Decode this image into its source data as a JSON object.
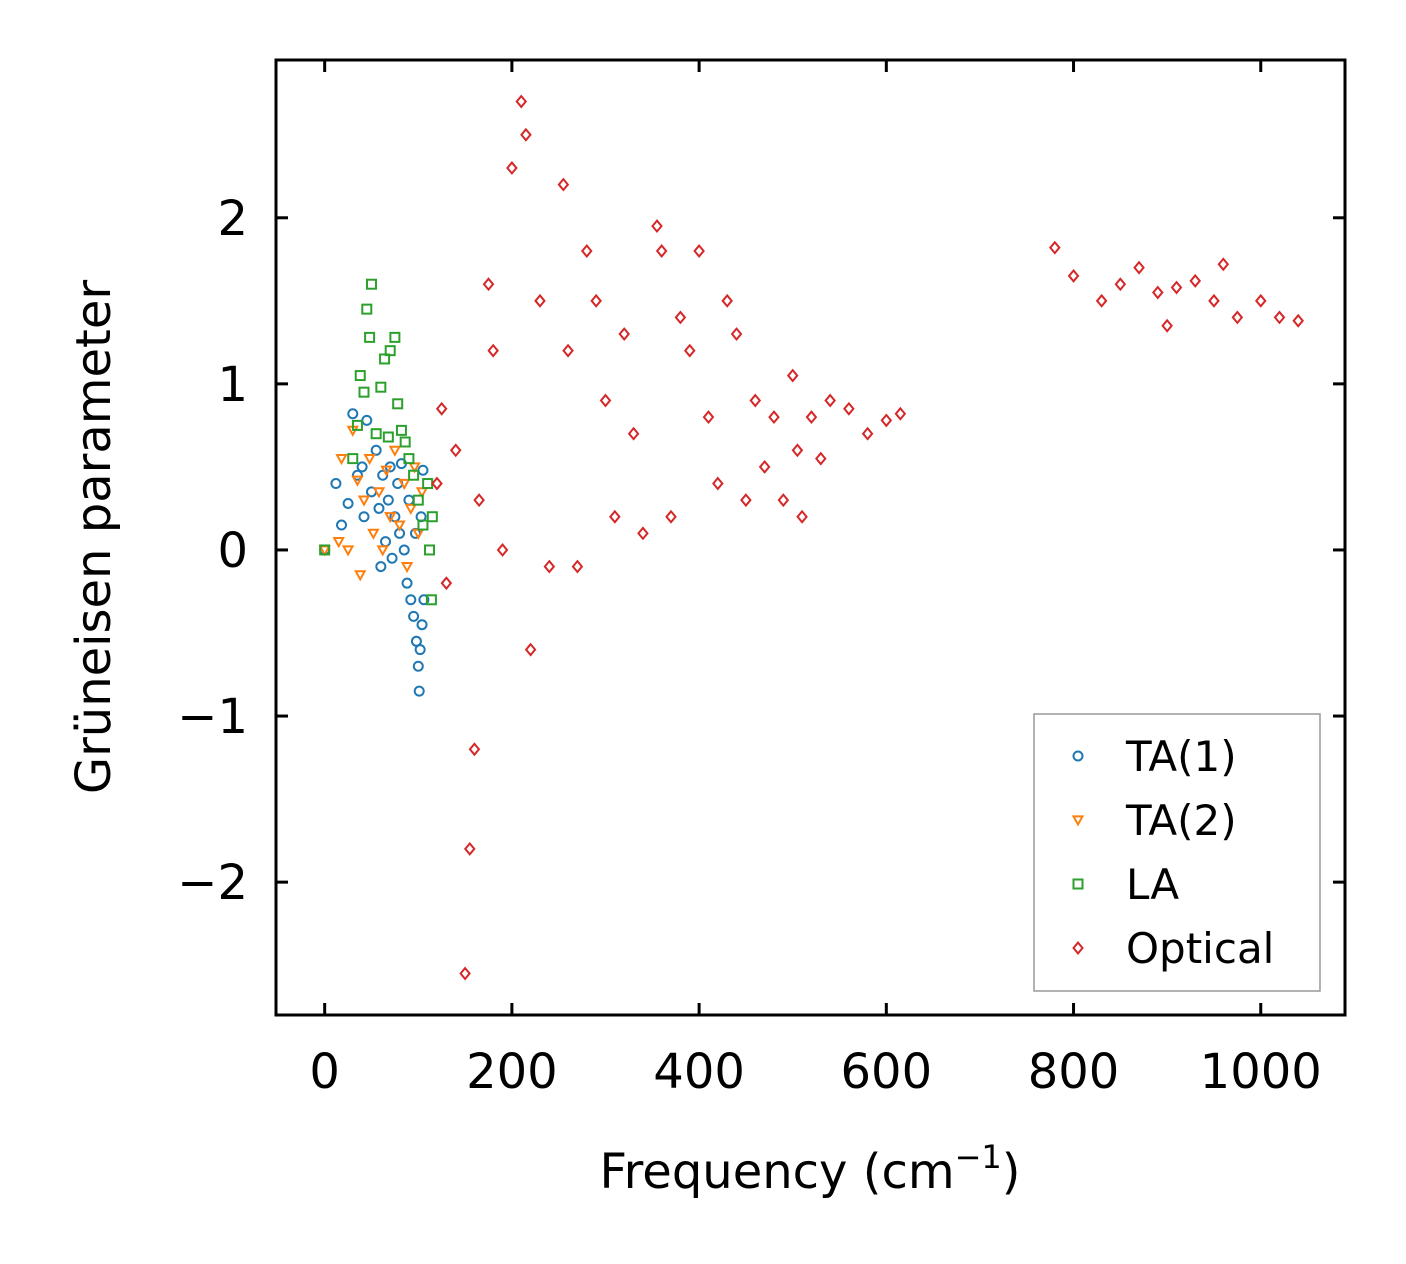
{
  "chart_data": {
    "type": "scatter",
    "title": "",
    "xlabel": "Frequency (cm",
    "xlabel_sup": "−1",
    "xlabel_close": ")",
    "ylabel": "Grüneisen parameter",
    "xlim": [
      -52,
      1090
    ],
    "ylim": [
      -2.8,
      2.95
    ],
    "xticks": [
      0,
      200,
      400,
      600,
      800,
      1000
    ],
    "xtick_labels": [
      "0",
      "200",
      "400",
      "600",
      "800",
      "1000"
    ],
    "yticks": [
      -2,
      -1,
      0,
      1,
      2
    ],
    "ytick_labels": [
      "−2",
      "−1",
      "0",
      "1",
      "2"
    ],
    "grid": false,
    "legend_position": "bottom-right",
    "series": [
      {
        "name": "TA(1)",
        "marker": "circle",
        "color": "#1f77b4",
        "points": [
          [
            0,
            0
          ],
          [
            12,
            0.4
          ],
          [
            18,
            0.15
          ],
          [
            25,
            0.28
          ],
          [
            30,
            0.82
          ],
          [
            35,
            0.45
          ],
          [
            40,
            0.5
          ],
          [
            42,
            0.2
          ],
          [
            45,
            0.78
          ],
          [
            50,
            0.35
          ],
          [
            55,
            0.6
          ],
          [
            58,
            0.25
          ],
          [
            60,
            -0.1
          ],
          [
            62,
            0.45
          ],
          [
            65,
            0.05
          ],
          [
            68,
            0.3
          ],
          [
            70,
            0.5
          ],
          [
            72,
            -0.05
          ],
          [
            75,
            0.2
          ],
          [
            78,
            0.4
          ],
          [
            80,
            0.1
          ],
          [
            82,
            0.52
          ],
          [
            85,
            0.0
          ],
          [
            88,
            -0.2
          ],
          [
            90,
            0.3
          ],
          [
            92,
            -0.3
          ],
          [
            95,
            -0.4
          ],
          [
            97,
            0.1
          ],
          [
            98,
            -0.55
          ],
          [
            100,
            -0.7
          ],
          [
            101,
            -0.85
          ],
          [
            102,
            -0.6
          ],
          [
            103,
            0.2
          ],
          [
            104,
            -0.45
          ],
          [
            105,
            0.48
          ],
          [
            106,
            -0.3
          ]
        ]
      },
      {
        "name": "TA(2)",
        "marker": "triangle-down",
        "color": "#ff7f0e",
        "points": [
          [
            0,
            0
          ],
          [
            15,
            0.05
          ],
          [
            18,
            0.55
          ],
          [
            25,
            0.0
          ],
          [
            30,
            0.72
          ],
          [
            35,
            0.42
          ],
          [
            38,
            -0.15
          ],
          [
            42,
            0.3
          ],
          [
            48,
            0.55
          ],
          [
            52,
            0.1
          ],
          [
            58,
            0.35
          ],
          [
            62,
            0.0
          ],
          [
            66,
            0.48
          ],
          [
            70,
            0.2
          ],
          [
            75,
            0.6
          ],
          [
            80,
            0.15
          ],
          [
            85,
            0.4
          ],
          [
            88,
            -0.1
          ],
          [
            92,
            0.25
          ],
          [
            96,
            0.5
          ],
          [
            100,
            0.1
          ],
          [
            104,
            0.35
          ]
        ]
      },
      {
        "name": "LA",
        "marker": "square",
        "color": "#2ca02c",
        "points": [
          [
            0,
            0
          ],
          [
            30,
            0.55
          ],
          [
            35,
            0.75
          ],
          [
            38,
            1.05
          ],
          [
            42,
            0.95
          ],
          [
            45,
            1.45
          ],
          [
            48,
            1.28
          ],
          [
            50,
            1.6
          ],
          [
            55,
            0.7
          ],
          [
            60,
            0.98
          ],
          [
            64,
            1.15
          ],
          [
            68,
            0.68
          ],
          [
            70,
            1.2
          ],
          [
            75,
            1.28
          ],
          [
            78,
            0.88
          ],
          [
            82,
            0.72
          ],
          [
            86,
            0.65
          ],
          [
            90,
            0.55
          ],
          [
            95,
            0.45
          ],
          [
            100,
            0.3
          ],
          [
            105,
            0.15
          ],
          [
            110,
            0.4
          ],
          [
            112,
            0.0
          ],
          [
            114,
            -0.3
          ],
          [
            115,
            0.2
          ]
        ]
      },
      {
        "name": "Optical",
        "marker": "diamond",
        "color": "#d62728",
        "points": [
          [
            120,
            0.4
          ],
          [
            125,
            0.85
          ],
          [
            130,
            -0.2
          ],
          [
            140,
            0.6
          ],
          [
            150,
            -2.55
          ],
          [
            155,
            -1.8
          ],
          [
            160,
            -1.2
          ],
          [
            165,
            0.3
          ],
          [
            175,
            1.6
          ],
          [
            180,
            1.2
          ],
          [
            190,
            0.0
          ],
          [
            200,
            2.3
          ],
          [
            210,
            2.7
          ],
          [
            215,
            2.5
          ],
          [
            220,
            -0.6
          ],
          [
            230,
            1.5
          ],
          [
            240,
            -0.1
          ],
          [
            255,
            2.2
          ],
          [
            260,
            1.2
          ],
          [
            270,
            -0.1
          ],
          [
            280,
            1.8
          ],
          [
            290,
            1.5
          ],
          [
            300,
            0.9
          ],
          [
            310,
            0.2
          ],
          [
            320,
            1.3
          ],
          [
            330,
            0.7
          ],
          [
            340,
            0.1
          ],
          [
            355,
            1.95
          ],
          [
            360,
            1.8
          ],
          [
            370,
            0.2
          ],
          [
            380,
            1.4
          ],
          [
            390,
            1.2
          ],
          [
            400,
            1.8
          ],
          [
            410,
            0.8
          ],
          [
            420,
            0.4
          ],
          [
            430,
            1.5
          ],
          [
            440,
            1.3
          ],
          [
            450,
            0.3
          ],
          [
            460,
            0.9
          ],
          [
            470,
            0.5
          ],
          [
            480,
            0.8
          ],
          [
            490,
            0.3
          ],
          [
            500,
            1.05
          ],
          [
            505,
            0.6
          ],
          [
            510,
            0.2
          ],
          [
            520,
            0.8
          ],
          [
            530,
            0.55
          ],
          [
            540,
            0.9
          ],
          [
            560,
            0.85
          ],
          [
            580,
            0.7
          ],
          [
            600,
            0.78
          ],
          [
            615,
            0.82
          ],
          [
            780,
            1.82
          ],
          [
            800,
            1.65
          ],
          [
            830,
            1.5
          ],
          [
            850,
            1.6
          ],
          [
            870,
            1.7
          ],
          [
            890,
            1.55
          ],
          [
            900,
            1.35
          ],
          [
            910,
            1.58
          ],
          [
            930,
            1.62
          ],
          [
            950,
            1.5
          ],
          [
            960,
            1.72
          ],
          [
            975,
            1.4
          ],
          [
            1000,
            1.5
          ],
          [
            1020,
            1.4
          ],
          [
            1040,
            1.38
          ]
        ]
      }
    ]
  }
}
